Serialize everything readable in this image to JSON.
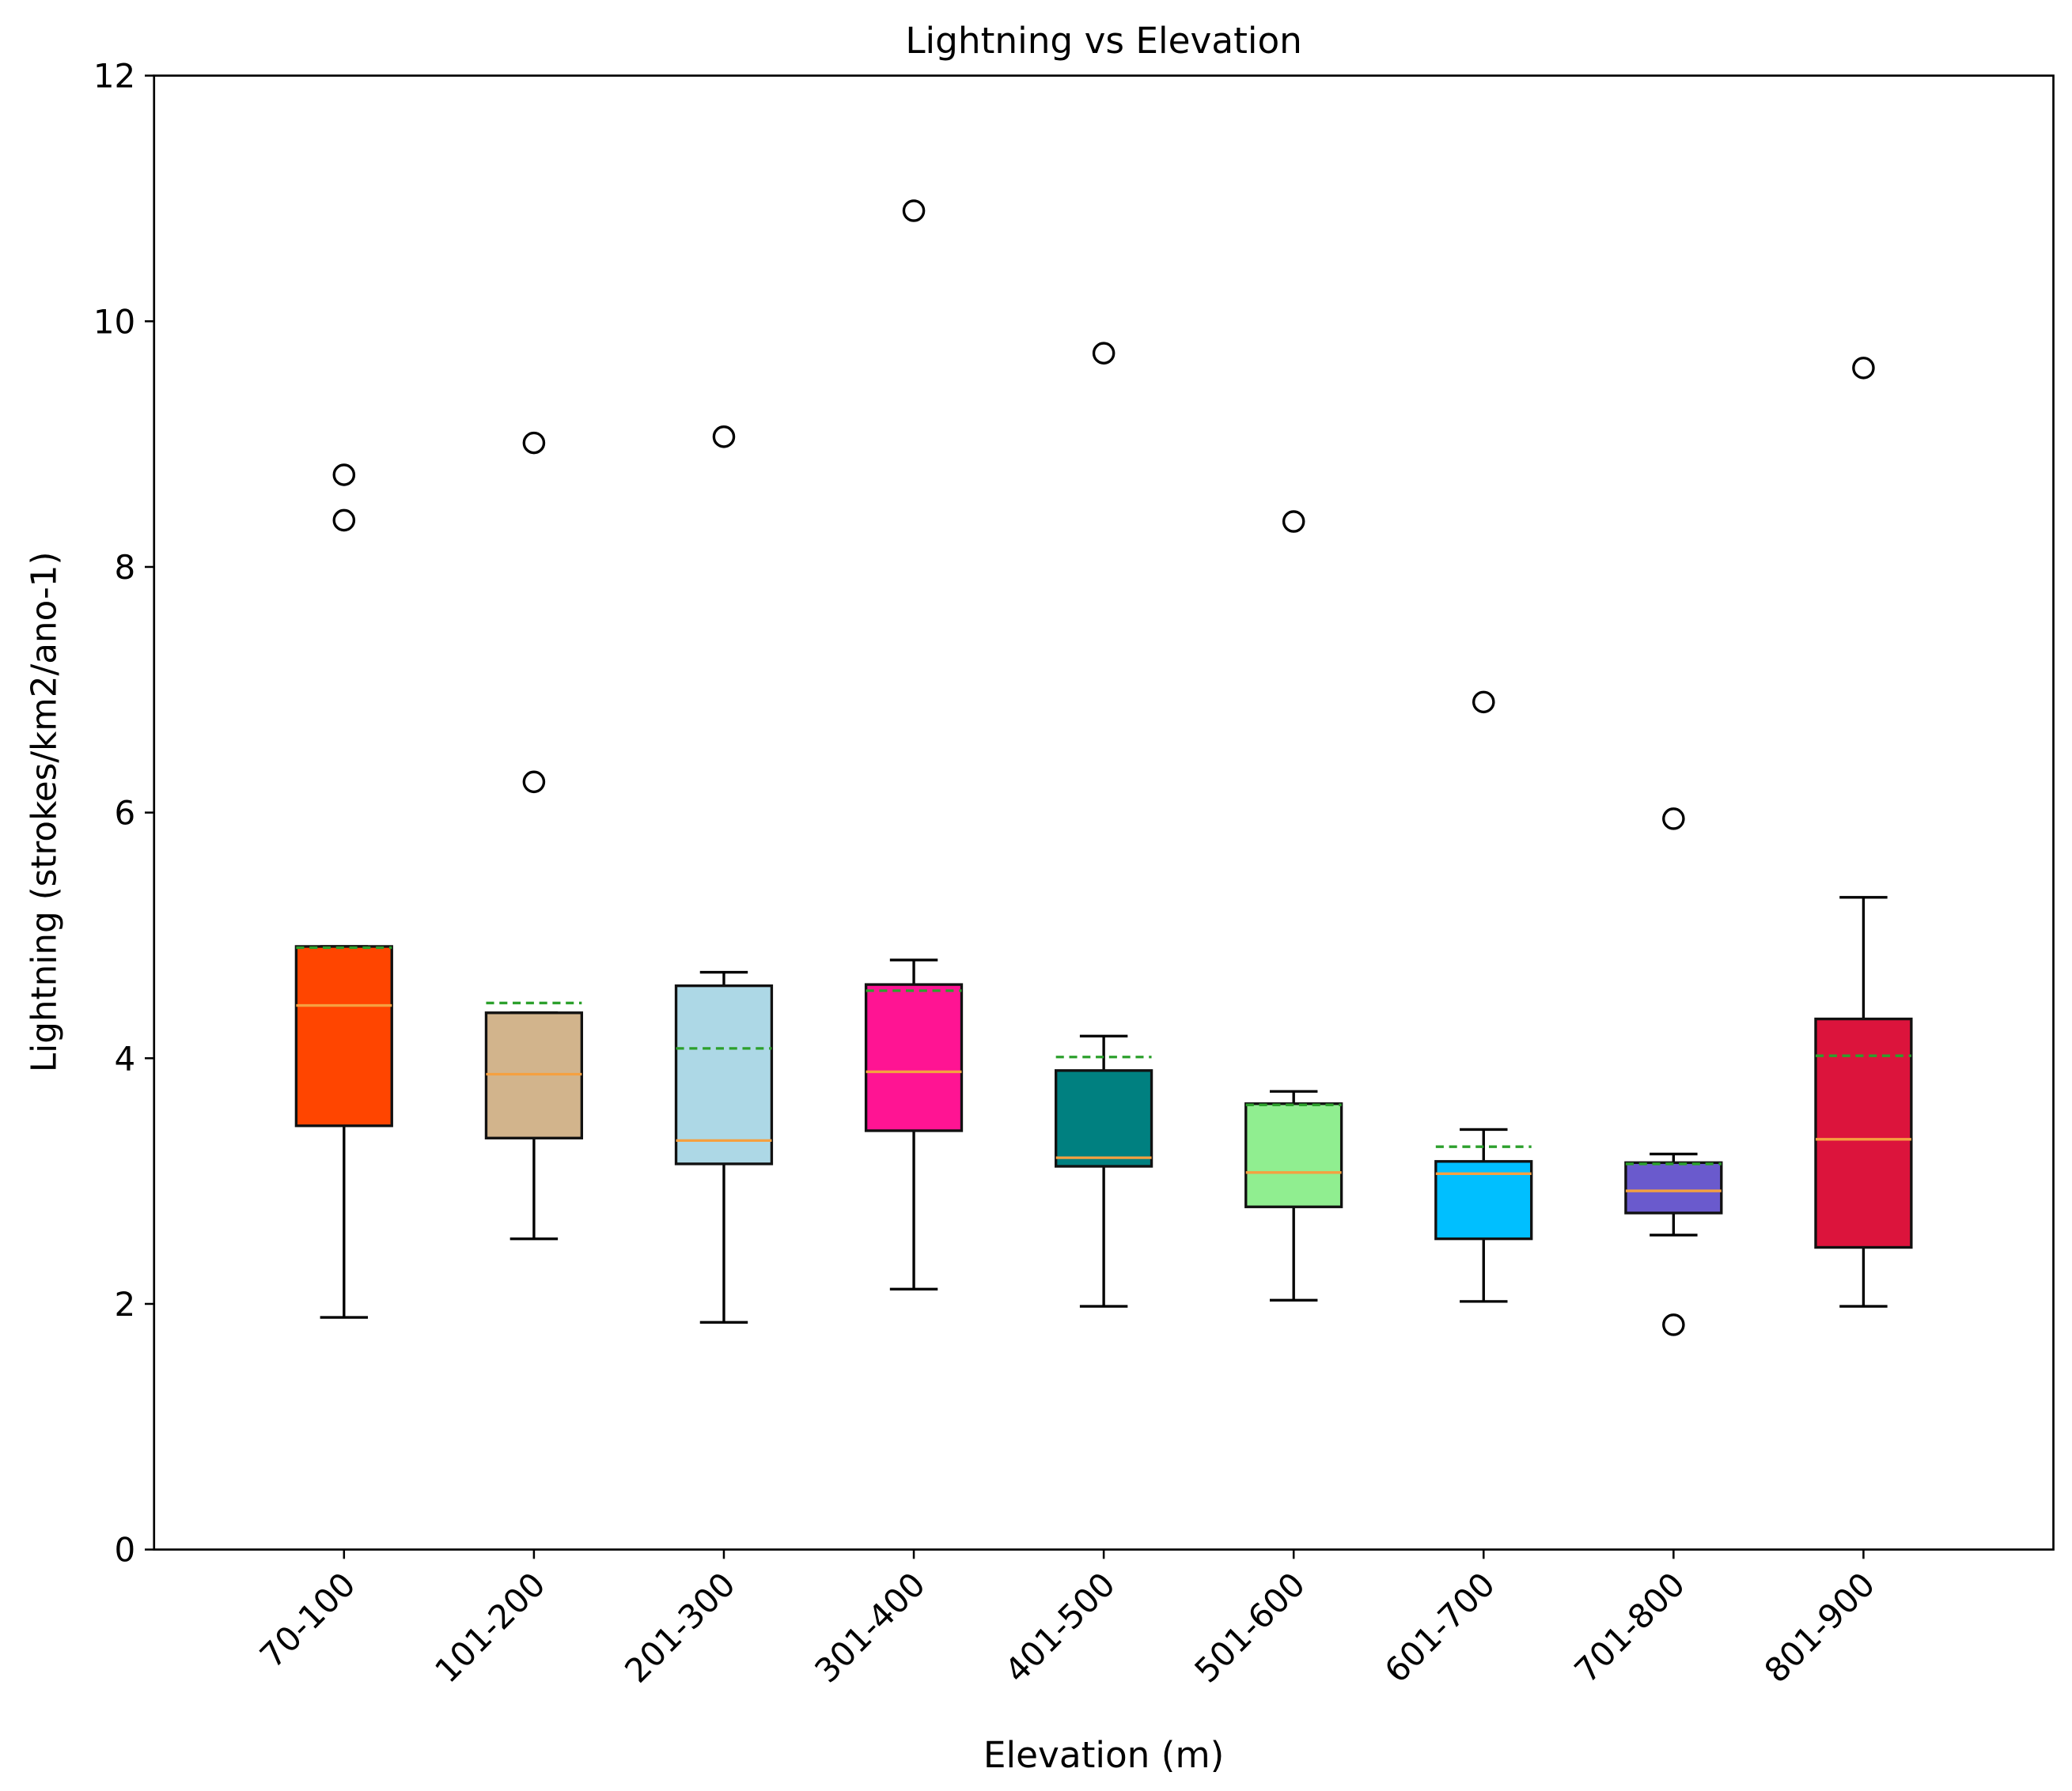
{
  "chart_data": {
    "type": "box",
    "title": "Lightning vs Elevation",
    "xlabel": "Elevation (m)",
    "ylabel": "Lightning (strokes/km2/ano-1)",
    "ylim": [
      0,
      12
    ],
    "yticks": [
      0,
      2,
      4,
      6,
      8,
      10,
      12
    ],
    "grid": false,
    "categories": [
      "70-100",
      "101-200",
      "201-300",
      "301-400",
      "401-500",
      "501-600",
      "601-700",
      "701-800",
      "801-900"
    ],
    "boxes": [
      {
        "category": "70-100",
        "color": "#FF4500",
        "whislo": 1.89,
        "q1": 3.45,
        "median": 4.43,
        "mean": 4.9,
        "q3": 4.91,
        "whishi": 4.91,
        "fliers": [
          8.75,
          8.38
        ]
      },
      {
        "category": "101-200",
        "color": "#D2B48C",
        "whislo": 2.53,
        "q1": 3.35,
        "median": 3.87,
        "mean": 4.45,
        "q3": 4.37,
        "whishi": 4.37,
        "fliers": [
          9.01,
          6.25
        ]
      },
      {
        "category": "201-300",
        "color": "#ADD8E6",
        "whislo": 1.85,
        "q1": 3.14,
        "median": 3.33,
        "mean": 4.08,
        "q3": 4.59,
        "whishi": 4.7,
        "fliers": [
          9.06
        ]
      },
      {
        "category": "301-400",
        "color": "#FF1493",
        "whislo": 2.12,
        "q1": 3.41,
        "median": 3.89,
        "mean": 4.55,
        "q3": 4.6,
        "whishi": 4.8,
        "fliers": [
          10.9
        ]
      },
      {
        "category": "401-500",
        "color": "#008080",
        "whislo": 1.98,
        "q1": 3.12,
        "median": 3.19,
        "mean": 4.01,
        "q3": 3.9,
        "whishi": 4.18,
        "fliers": [
          9.74
        ]
      },
      {
        "category": "501-600",
        "color": "#90EE90",
        "whislo": 2.03,
        "q1": 2.79,
        "median": 3.07,
        "mean": 3.62,
        "q3": 3.63,
        "whishi": 3.73,
        "fliers": [
          8.37
        ]
      },
      {
        "category": "601-700",
        "color": "#00BFFF",
        "whislo": 2.02,
        "q1": 2.53,
        "median": 3.06,
        "mean": 3.28,
        "q3": 3.16,
        "whishi": 3.42,
        "fliers": [
          6.9
        ]
      },
      {
        "category": "701-800",
        "color": "#6A5ACD",
        "whislo": 2.56,
        "q1": 2.74,
        "median": 2.92,
        "mean": 3.14,
        "q3": 3.15,
        "whishi": 3.22,
        "fliers": [
          5.95,
          1.83
        ]
      },
      {
        "category": "801-900",
        "color": "#DC143C",
        "whislo": 1.98,
        "q1": 2.46,
        "median": 3.34,
        "mean": 4.02,
        "q3": 4.32,
        "whishi": 5.31,
        "fliers": [
          9.62
        ]
      }
    ],
    "median_color": "#F5A040",
    "mean_color": "#2CA02C",
    "mean_style": "dashed line"
  }
}
